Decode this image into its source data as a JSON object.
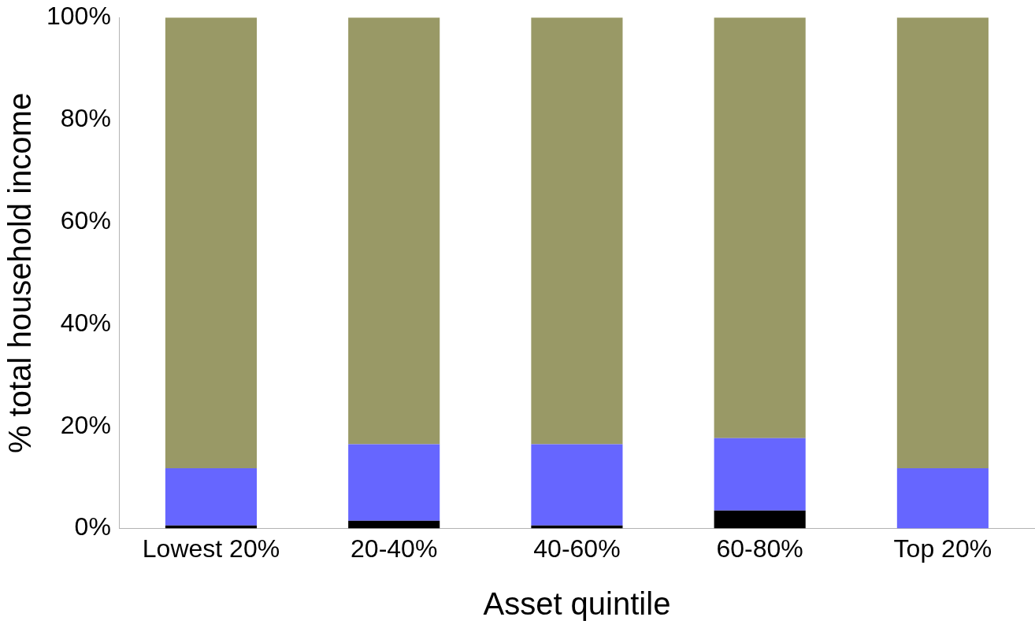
{
  "chart_data": {
    "type": "bar",
    "stacked": true,
    "xlabel": "Asset quintile",
    "ylabel": "% total household income",
    "categories": [
      "Lowest 20%",
      "20-40%",
      "40-60%",
      "60-80%",
      "Top 20%"
    ],
    "series": [
      {
        "color": "#000000",
        "values": [
          0.6,
          1.5,
          0.6,
          3.5,
          0
        ]
      },
      {
        "color": "#6666ff",
        "values": [
          11.2,
          15.0,
          15.9,
          14.2,
          11.8
        ]
      },
      {
        "color": "#999966",
        "values": [
          88.2,
          83.5,
          83.5,
          82.3,
          88.2
        ]
      }
    ],
    "ylim": [
      0,
      100
    ],
    "yticks": [
      {
        "value": 0,
        "label": "0%"
      },
      {
        "value": 20,
        "label": "20%"
      },
      {
        "value": 40,
        "label": "40%"
      },
      {
        "value": 60,
        "label": "60%"
      },
      {
        "value": 80,
        "label": "80%"
      },
      {
        "value": 100,
        "label": "100%"
      }
    ],
    "grid": false,
    "legend": false
  }
}
